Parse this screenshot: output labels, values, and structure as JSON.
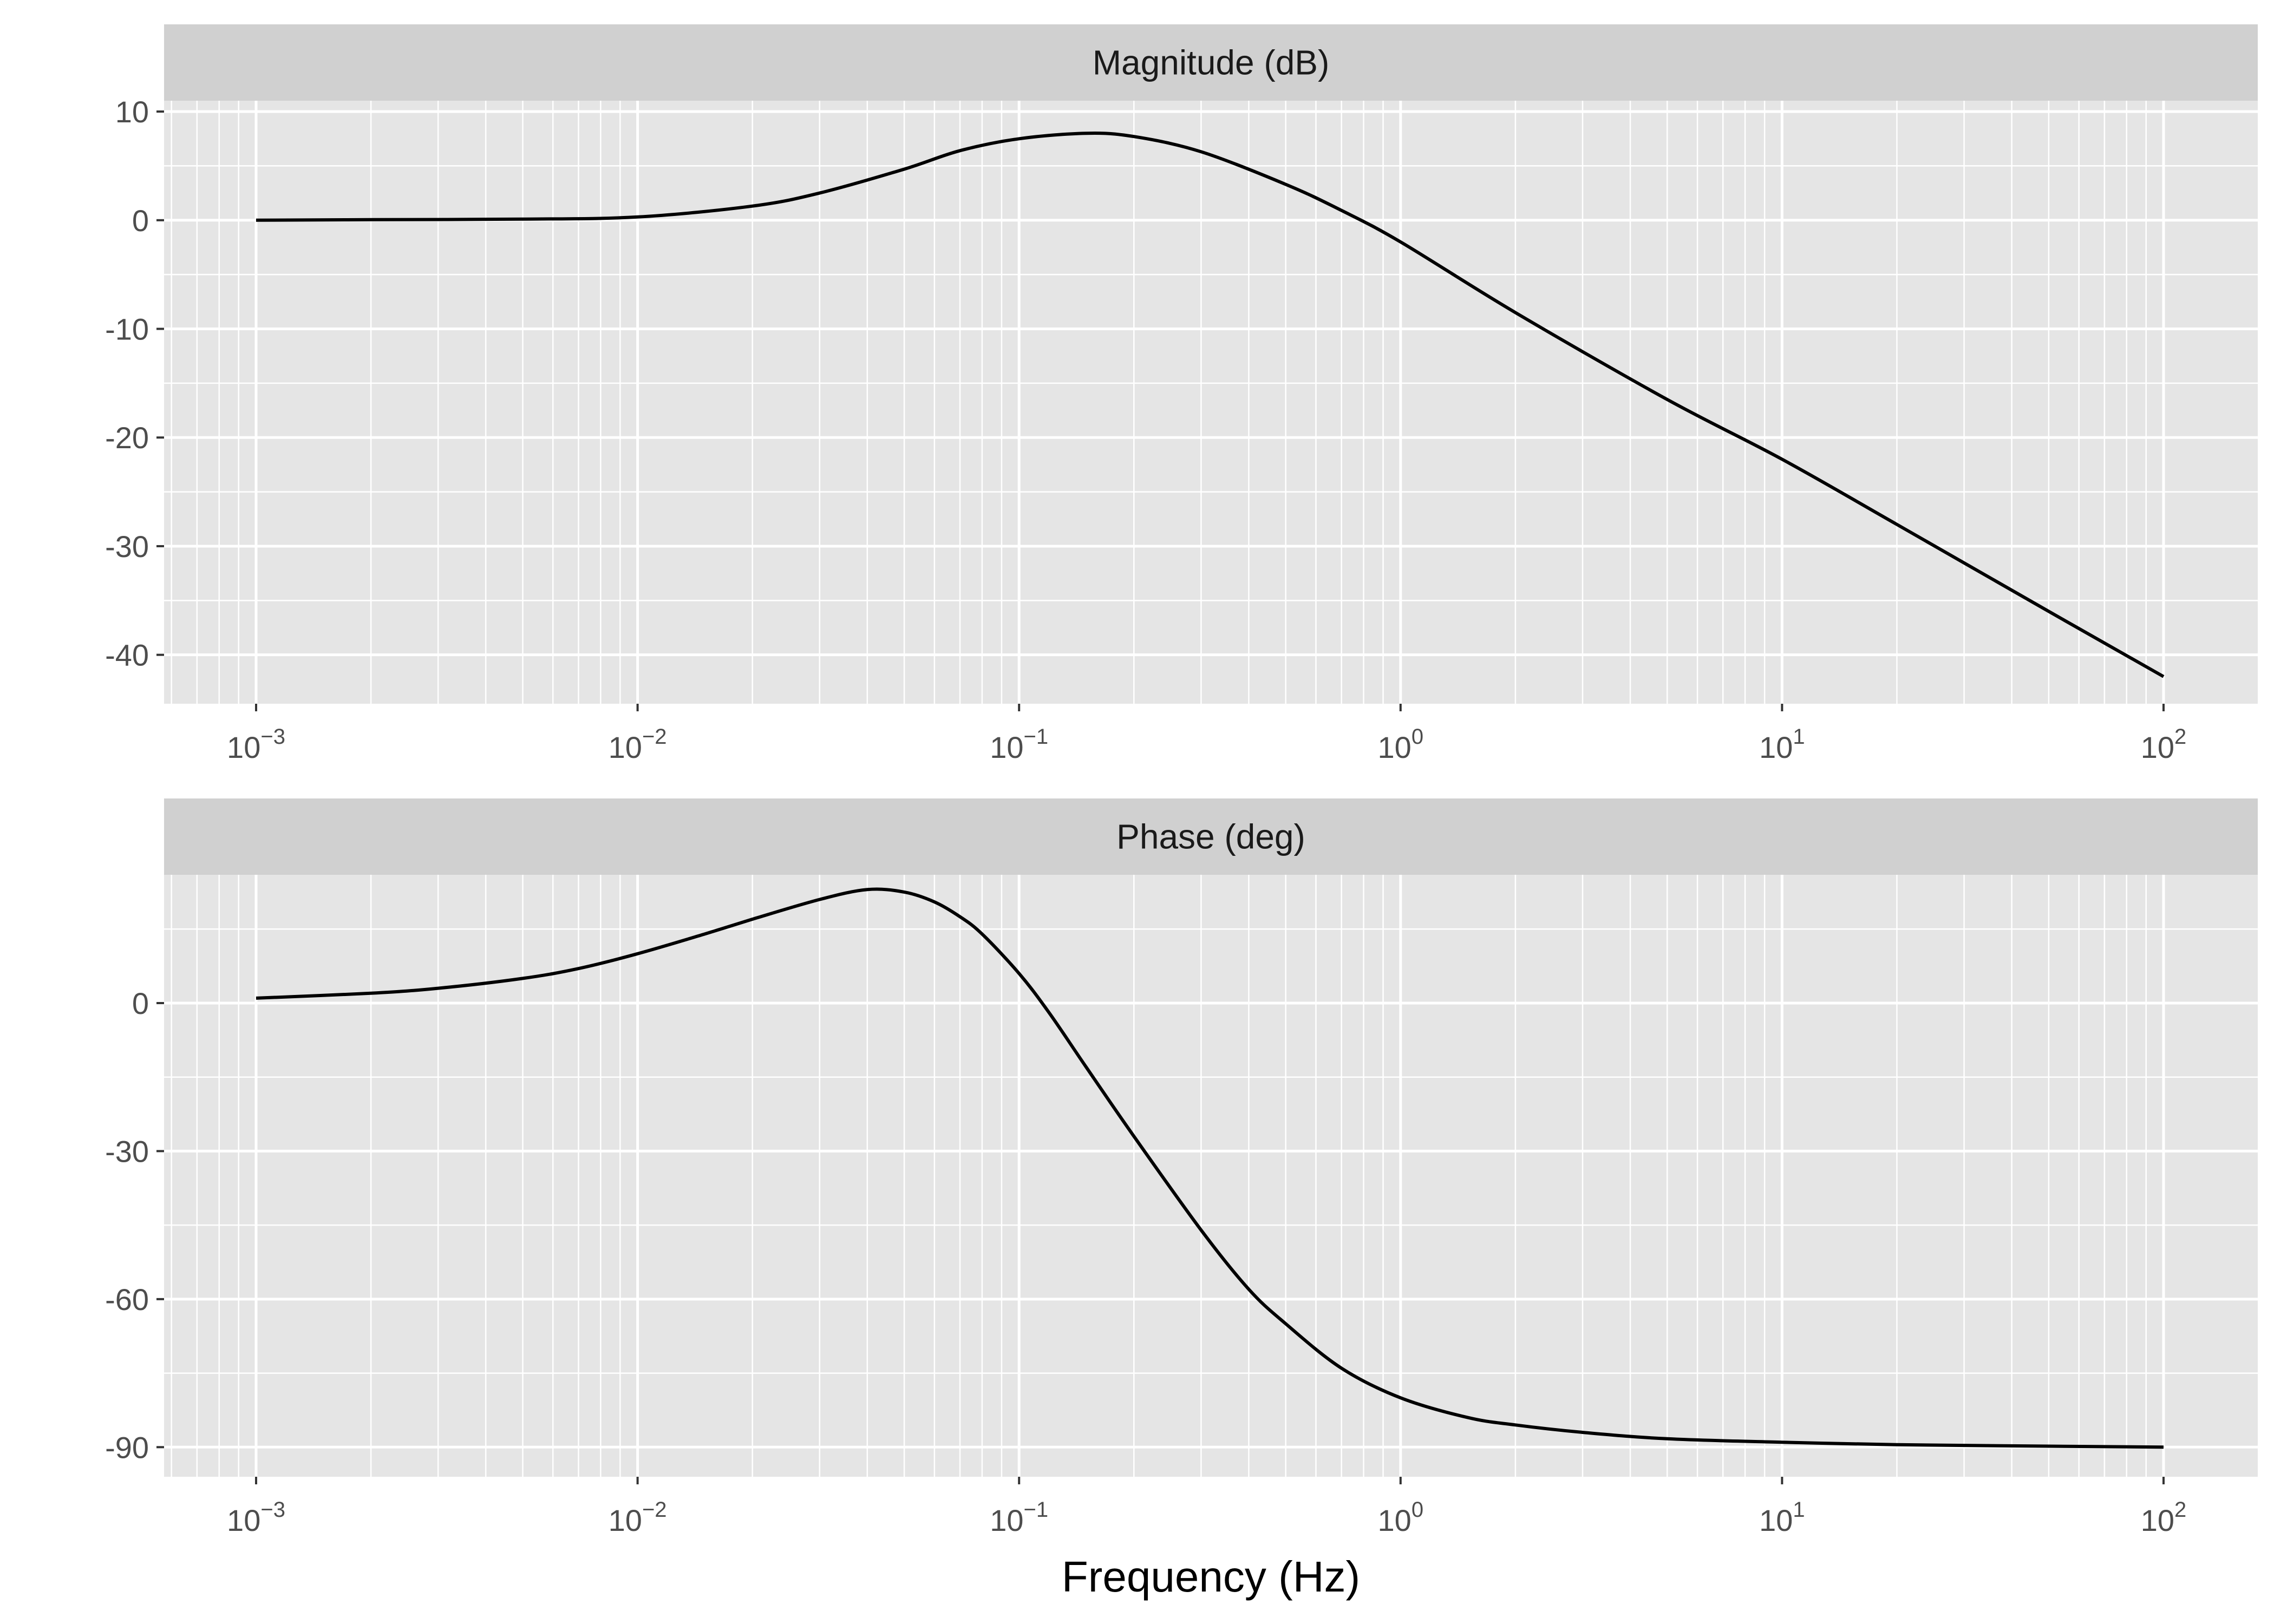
{
  "chart_data": {
    "type": "line",
    "xlabel": "Frequency (Hz)",
    "x_scale": "log10",
    "x_ticks": [
      {
        "value": 0.001,
        "base": "10",
        "exp": "−3"
      },
      {
        "value": 0.01,
        "base": "10",
        "exp": "−2"
      },
      {
        "value": 0.1,
        "base": "10",
        "exp": "−1"
      },
      {
        "value": 1,
        "base": "10",
        "exp": "0"
      },
      {
        "value": 10,
        "base": "10",
        "exp": "1"
      },
      {
        "value": 100,
        "base": "10",
        "exp": "2"
      }
    ],
    "colors": {
      "panel_bg": "#e5e5e5",
      "strip_bg": "#d0d0d0",
      "grid": "#ffffff",
      "line": "#000000",
      "tick_text": "#4d4d4d"
    },
    "panels": [
      {
        "strip": "Magnitude (dB)",
        "ylim": [
          -44.5,
          11
        ],
        "y_ticks": [
          10,
          0,
          -10,
          -20,
          -30,
          -40
        ],
        "y_tick_labels": [
          "10",
          "0",
          "-10",
          "-20",
          "-30",
          "-40"
        ],
        "series": {
          "x": [
            0.001,
            0.002,
            0.005,
            0.01,
            0.02,
            0.03,
            0.05,
            0.07,
            0.1,
            0.15,
            0.2,
            0.3,
            0.5,
            0.7,
            1,
            2,
            5,
            10,
            20,
            50,
            100
          ],
          "y": [
            0,
            0.05,
            0.1,
            0.3,
            1.3,
            2.5,
            4.7,
            6.4,
            7.5,
            8,
            7.7,
            6.3,
            3.3,
            0.9,
            -2,
            -8.5,
            -16.5,
            -22,
            -28,
            -36,
            -42
          ]
        }
      },
      {
        "strip": "Phase (deg)",
        "ylim": [
          -96,
          26
        ],
        "y_ticks": [
          0,
          -30,
          -60,
          -90
        ],
        "y_tick_labels": [
          "0",
          "-30",
          "-60",
          "-90"
        ],
        "series": {
          "x": [
            0.001,
            0.002,
            0.003,
            0.005,
            0.007,
            0.01,
            0.015,
            0.02,
            0.03,
            0.04,
            0.05,
            0.06,
            0.07,
            0.08,
            0.1,
            0.12,
            0.15,
            0.2,
            0.3,
            0.4,
            0.5,
            0.7,
            1,
            1.5,
            2,
            3,
            5,
            10,
            20,
            50,
            100
          ],
          "y": [
            1,
            2,
            3,
            5,
            7,
            10,
            14,
            17,
            21,
            23,
            22.5,
            20.5,
            17.5,
            14,
            6,
            -2,
            -13,
            -27,
            -46,
            -58,
            -65,
            -74,
            -80,
            -84,
            -85.5,
            -87,
            -88.3,
            -89,
            -89.5,
            -89.8,
            -90
          ]
        }
      }
    ]
  }
}
